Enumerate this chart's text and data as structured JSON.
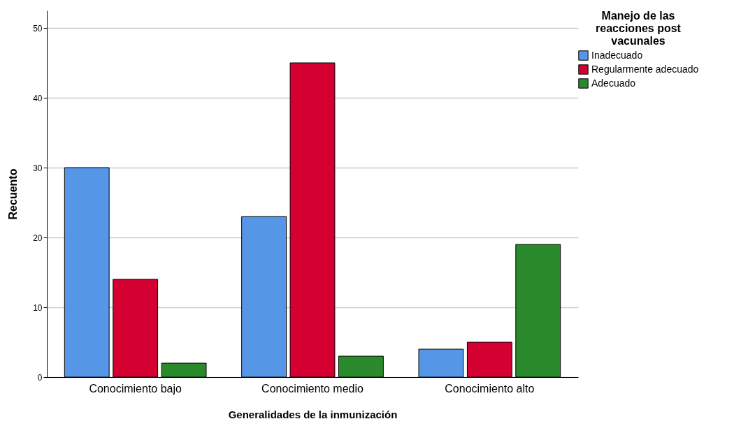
{
  "chart_data": {
    "type": "bar",
    "xlabel": "Generalidades de la inmunización",
    "ylabel": "Recuento",
    "legend_title": "Manejo de las reacciones post vacunales",
    "categories": [
      "Conocimiento bajo",
      "Conocimiento medio",
      "Conocimiento alto"
    ],
    "series": [
      {
        "name": "Inadecuado",
        "color": "#5596e6",
        "values": [
          30,
          23,
          4
        ]
      },
      {
        "name": "Regularmente adecuado",
        "color": "#d50032",
        "values": [
          14,
          45,
          5
        ]
      },
      {
        "name": "Adecuado",
        "color": "#2a8a2b",
        "values": [
          2,
          3,
          19
        ]
      }
    ],
    "ylim": [
      0,
      52.5
    ],
    "yticks": [
      0,
      10,
      20,
      30,
      40,
      50
    ],
    "grid": "y",
    "legend": "right"
  }
}
